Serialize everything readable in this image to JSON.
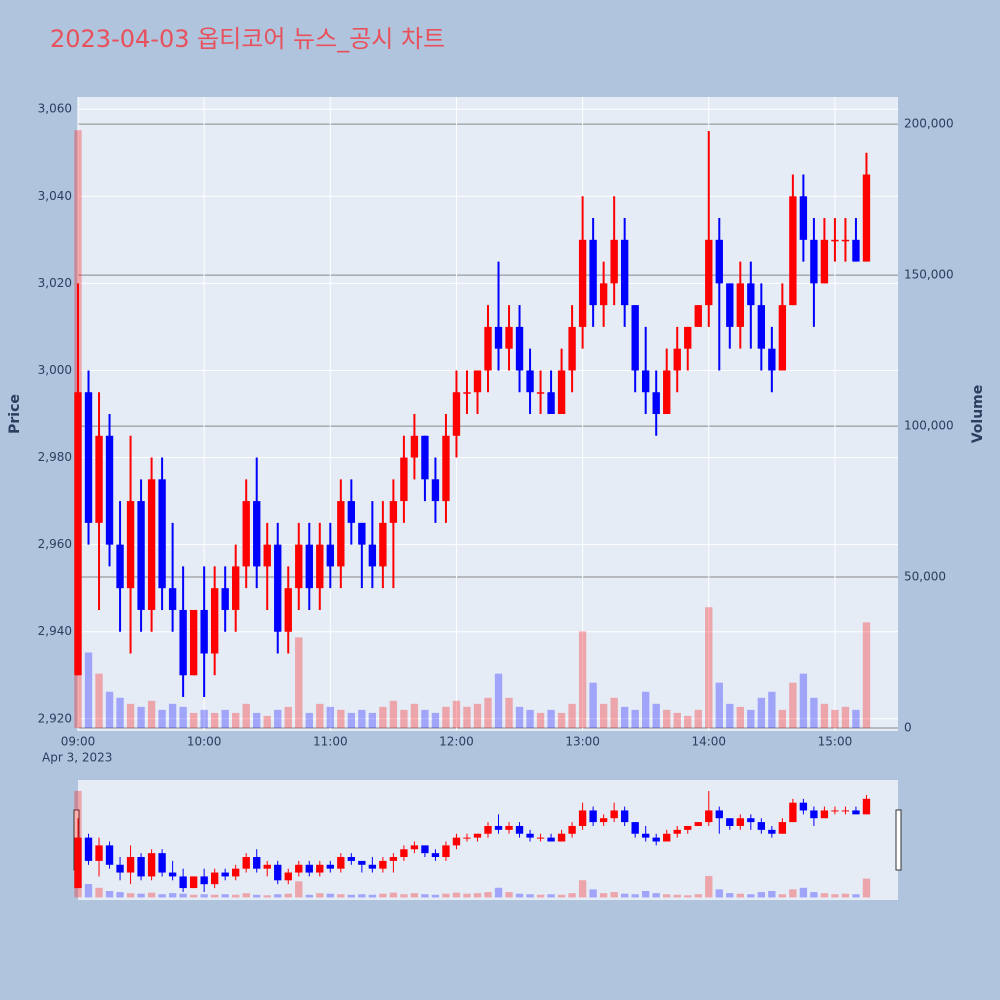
{
  "chart_data": {
    "type": "candlestick",
    "title": "2023-04-03 옵티코어 뉴스_공시 차트",
    "y_label": "Price",
    "y2_label": "Volume",
    "date_label": "Apr 3, 2023",
    "increasing_color": "#ff0000",
    "decreasing_color": "#0000ff",
    "x": [
      "09:00",
      "09:05",
      "09:10",
      "09:15",
      "09:20",
      "09:25",
      "09:30",
      "09:35",
      "09:40",
      "09:45",
      "09:50",
      "09:55",
      "10:00",
      "10:05",
      "10:10",
      "10:15",
      "10:20",
      "10:25",
      "10:30",
      "10:35",
      "10:40",
      "10:45",
      "10:50",
      "10:55",
      "11:00",
      "11:05",
      "11:10",
      "11:15",
      "11:20",
      "11:25",
      "11:30",
      "11:35",
      "11:40",
      "11:45",
      "11:50",
      "11:55",
      "12:00",
      "12:05",
      "12:10",
      "12:15",
      "12:20",
      "12:25",
      "12:30",
      "12:35",
      "12:40",
      "12:45",
      "12:50",
      "12:55",
      "13:00",
      "13:05",
      "13:10",
      "13:15",
      "13:20",
      "13:25",
      "13:30",
      "13:35",
      "13:40",
      "13:45",
      "13:50",
      "13:55",
      "14:00",
      "14:05",
      "14:10",
      "14:15",
      "14:20",
      "14:25",
      "14:30",
      "14:35",
      "14:40",
      "14:45",
      "14:50",
      "14:55",
      "15:00",
      "15:05",
      "15:10",
      "15:15"
    ],
    "open": [
      2930,
      2995,
      2965,
      2985,
      2960,
      2950,
      2970,
      2945,
      2975,
      2950,
      2945,
      2930,
      2945,
      2935,
      2950,
      2945,
      2955,
      2970,
      2955,
      2960,
      2940,
      2950,
      2960,
      2950,
      2960,
      2955,
      2970,
      2965,
      2960,
      2955,
      2965,
      2970,
      2980,
      2985,
      2975,
      2970,
      2985,
      2995,
      2995,
      3000,
      3010,
      3005,
      3010,
      3000,
      2995,
      2995,
      2990,
      3000,
      3010,
      3030,
      3015,
      3020,
      3030,
      3015,
      3000,
      2995,
      2990,
      3000,
      3005,
      3010,
      3015,
      3030,
      3020,
      3010,
      3020,
      3015,
      3005,
      3000,
      3015,
      3040,
      3030,
      3020,
      3030,
      3030,
      3030,
      3025
    ],
    "high": [
      3020,
      3000,
      2995,
      2990,
      2970,
      2985,
      2975,
      2980,
      2980,
      2965,
      2955,
      2945,
      2955,
      2955,
      2955,
      2960,
      2975,
      2980,
      2965,
      2965,
      2955,
      2965,
      2965,
      2965,
      2965,
      2975,
      2975,
      2965,
      2970,
      2970,
      2975,
      2985,
      2990,
      2985,
      2980,
      2990,
      3000,
      3000,
      3000,
      3015,
      3025,
      3015,
      3015,
      3005,
      3000,
      3000,
      3005,
      3015,
      3040,
      3035,
      3025,
      3040,
      3035,
      3015,
      3010,
      3000,
      3005,
      3010,
      3010,
      3015,
      3055,
      3035,
      3020,
      3025,
      3025,
      3020,
      3010,
      3020,
      3045,
      3045,
      3035,
      3035,
      3035,
      3035,
      3035,
      3050
    ],
    "low": [
      2930,
      2960,
      2945,
      2955,
      2940,
      2935,
      2940,
      2940,
      2945,
      2940,
      2925,
      2930,
      2925,
      2930,
      2940,
      2940,
      2950,
      2950,
      2945,
      2935,
      2935,
      2945,
      2945,
      2945,
      2950,
      2950,
      2960,
      2950,
      2950,
      2950,
      2950,
      2965,
      2975,
      2970,
      2965,
      2965,
      2980,
      2990,
      2990,
      2995,
      3000,
      3000,
      2995,
      2990,
      2990,
      2990,
      2990,
      2995,
      3005,
      3010,
      3010,
      3015,
      3010,
      2995,
      2990,
      2985,
      2990,
      2995,
      3000,
      3010,
      3010,
      3000,
      3005,
      3005,
      3005,
      3000,
      2995,
      3000,
      3015,
      3025,
      3010,
      3020,
      3025,
      3025,
      3025,
      3025
    ],
    "close": [
      2995,
      2965,
      2985,
      2960,
      2950,
      2970,
      2945,
      2975,
      2950,
      2945,
      2930,
      2945,
      2935,
      2950,
      2945,
      2955,
      2970,
      2955,
      2960,
      2940,
      2950,
      2960,
      2950,
      2960,
      2955,
      2970,
      2965,
      2960,
      2955,
      2965,
      2970,
      2980,
      2985,
      2975,
      2970,
      2985,
      2995,
      2995,
      3000,
      3010,
      3005,
      3010,
      3000,
      2995,
      2995,
      2990,
      3000,
      3010,
      3030,
      3015,
      3020,
      3030,
      3015,
      3000,
      2995,
      2990,
      3000,
      3005,
      3010,
      3015,
      3030,
      3020,
      3010,
      3020,
      3015,
      3005,
      3000,
      3015,
      3040,
      3030,
      3020,
      3030,
      3030,
      3030,
      3025,
      3045
    ],
    "volume": [
      198000,
      25000,
      18000,
      12000,
      10000,
      8000,
      7000,
      9000,
      6000,
      8000,
      7000,
      5000,
      6000,
      5000,
      6000,
      5000,
      8000,
      5000,
      4000,
      6000,
      7000,
      30000,
      5000,
      8000,
      7000,
      6000,
      5000,
      6000,
      5000,
      7000,
      9000,
      6000,
      8000,
      6000,
      5000,
      7000,
      9000,
      7000,
      8000,
      10000,
      18000,
      10000,
      7000,
      6000,
      5000,
      6000,
      5000,
      8000,
      32000,
      15000,
      8000,
      10000,
      7000,
      6000,
      12000,
      8000,
      6000,
      5000,
      4000,
      6000,
      40000,
      15000,
      8000,
      7000,
      6000,
      10000,
      12000,
      6000,
      15000,
      18000,
      10000,
      8000,
      6000,
      7000,
      6000,
      35000
    ],
    "xlim": [
      "09:00",
      "15:30"
    ],
    "xticks": [
      "09:00",
      "10:00",
      "11:00",
      "12:00",
      "13:00",
      "14:00",
      "15:00"
    ],
    "ylim": [
      2917.2,
      3062.8
    ],
    "yticks": [
      {
        "value": 2920,
        "label": "2,920"
      },
      {
        "value": 2940,
        "label": "2,940"
      },
      {
        "value": 2960,
        "label": "2,960"
      },
      {
        "value": 2980,
        "label": "2,980"
      },
      {
        "value": 3000,
        "label": "3,000"
      },
      {
        "value": 3020,
        "label": "3,020"
      },
      {
        "value": 3040,
        "label": "3,040"
      },
      {
        "value": 3060,
        "label": "3,060"
      }
    ],
    "y2lim": [
      -1000,
      209000
    ],
    "y2ticks": [
      0,
      {
        "value": 50000,
        "label": "50,000"
      },
      {
        "value": 100000,
        "label": "100,000"
      },
      {
        "value": 150000,
        "label": "150,000"
      },
      {
        "value": 200000,
        "label": "200,000"
      }
    ]
  }
}
